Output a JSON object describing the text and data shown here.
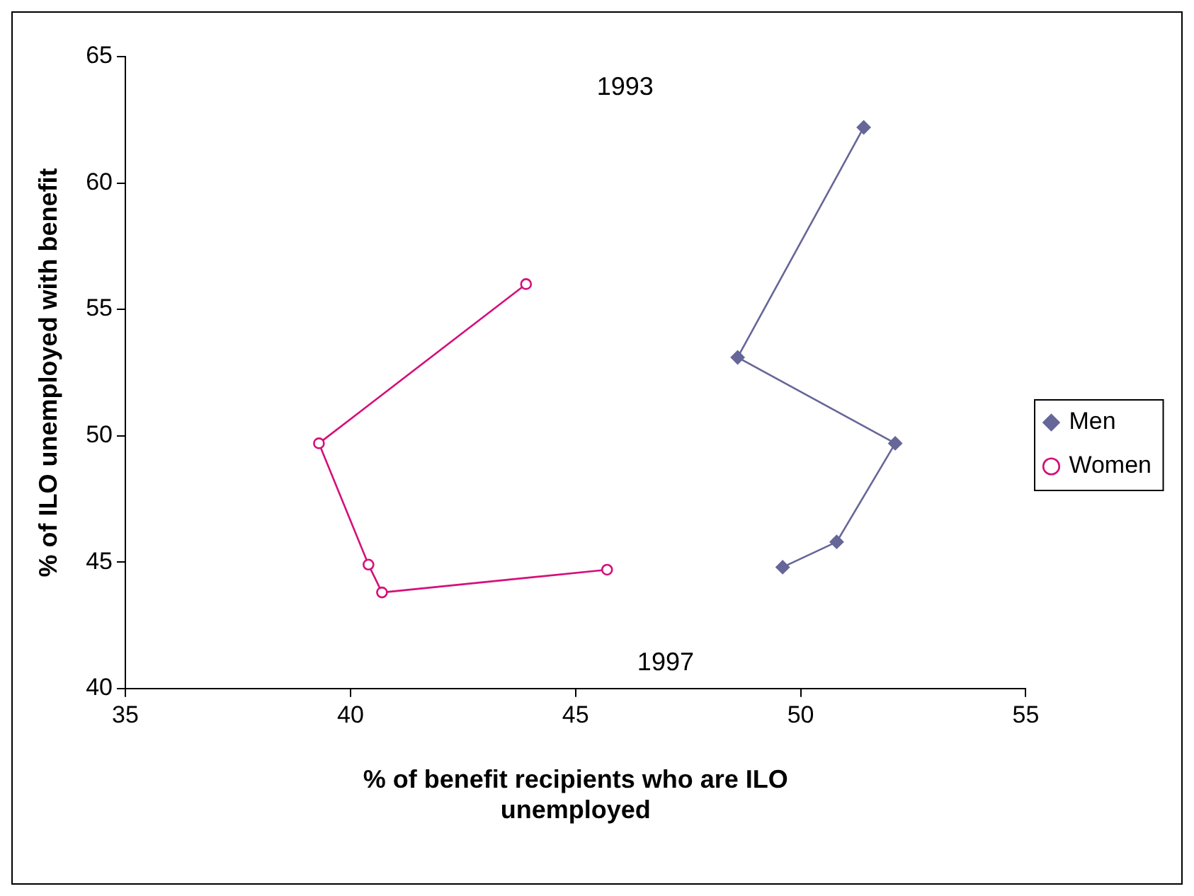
{
  "chart_data": {
    "type": "line",
    "xlabel": "% of benefit recipients who are ILO unemployed",
    "ylabel": "% of ILO unemployed with benefit",
    "xlim": [
      35,
      55
    ],
    "xticks": [
      35,
      40,
      45,
      50,
      55
    ],
    "ylim": [
      40,
      65
    ],
    "yticks": [
      40,
      45,
      50,
      55,
      60,
      65
    ],
    "grid": false,
    "legend": "right",
    "line_style": "solid",
    "series": [
      {
        "name": "Men",
        "color": "#666699",
        "marker": "diamond",
        "x": [
          51.4,
          48.6,
          52.1,
          50.8,
          49.6
        ],
        "values": [
          62.2,
          53.1,
          49.7,
          45.8,
          44.8
        ]
      },
      {
        "name": "Women",
        "color": "#d4107a",
        "marker": "circle",
        "x": [
          43.9,
          39.3,
          40.4,
          40.7,
          45.7
        ],
        "values": [
          56.0,
          49.7,
          44.9,
          43.8,
          44.7
        ]
      }
    ],
    "annotations": [
      "1993",
      "1997"
    ]
  }
}
